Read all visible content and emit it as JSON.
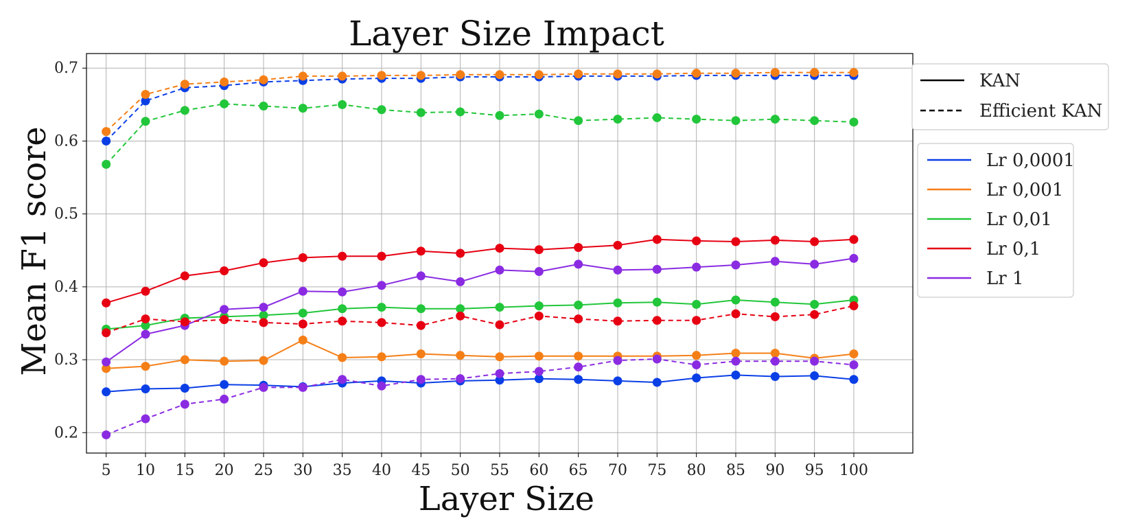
{
  "chart_data": {
    "type": "line",
    "title": "Layer Size Impact",
    "xlabel": "Layer Size",
    "ylabel": "Mean F1 score",
    "x": [
      5,
      10,
      15,
      20,
      25,
      30,
      35,
      40,
      45,
      50,
      55,
      60,
      65,
      70,
      75,
      80,
      85,
      90,
      95,
      100
    ],
    "x_ticks": [
      "5",
      "10",
      "15",
      "20",
      "25",
      "30",
      "35",
      "40",
      "45",
      "50",
      "55",
      "60",
      "65",
      "70",
      "75",
      "80",
      "85",
      "90",
      "95",
      "100"
    ],
    "y_ticks": [
      "0.2",
      "0.3",
      "0.4",
      "0.5",
      "0.6",
      "0.7"
    ],
    "y_tick_values": [
      0.2,
      0.3,
      0.4,
      0.5,
      0.6,
      0.7
    ],
    "xlim": [
      2.5,
      107.5
    ],
    "ylim": [
      0.172,
      0.72
    ],
    "grid": true,
    "style_legend": {
      "placement": "top-right-outside",
      "items": [
        {
          "label": "KAN",
          "style": "solid"
        },
        {
          "label": "Efficient KAN",
          "style": "dashed"
        }
      ]
    },
    "color_legend": {
      "placement": "right-outside",
      "items": [
        {
          "label": "Lr 0,0001",
          "color": "#0b3fe6"
        },
        {
          "label": "Lr 0,001",
          "color": "#f57f17"
        },
        {
          "label": "Lr 0,01",
          "color": "#22c63a"
        },
        {
          "label": "Lr 0,1",
          "color": "#e60012"
        },
        {
          "label": "Lr 1",
          "color": "#8a2be2"
        }
      ]
    },
    "series": [
      {
        "name": "KAN Lr 0,0001",
        "lr": "Lr 0,0001",
        "model": "KAN",
        "color": "#0b3fe6",
        "dashed": false,
        "values": [
          0.256,
          0.26,
          0.261,
          0.266,
          0.265,
          0.263,
          0.268,
          0.271,
          0.268,
          0.271,
          0.272,
          0.274,
          0.273,
          0.271,
          0.269,
          0.275,
          0.279,
          0.277,
          0.278,
          0.273
        ]
      },
      {
        "name": "KAN Lr 0,001",
        "lr": "Lr 0,001",
        "model": "KAN",
        "color": "#f57f17",
        "dashed": false,
        "values": [
          0.288,
          0.291,
          0.3,
          0.298,
          0.299,
          0.327,
          0.303,
          0.304,
          0.308,
          0.306,
          0.304,
          0.305,
          0.305,
          0.305,
          0.305,
          0.306,
          0.309,
          0.309,
          0.302,
          0.308
        ]
      },
      {
        "name": "KAN Lr 0,01",
        "lr": "Lr 0,01",
        "model": "KAN",
        "color": "#22c63a",
        "dashed": false,
        "values": [
          0.342,
          0.347,
          0.357,
          0.359,
          0.361,
          0.364,
          0.37,
          0.372,
          0.37,
          0.37,
          0.372,
          0.374,
          0.375,
          0.378,
          0.379,
          0.376,
          0.382,
          0.379,
          0.376,
          0.382
        ]
      },
      {
        "name": "KAN Lr 0,1",
        "lr": "Lr 0,1",
        "model": "KAN",
        "color": "#e60012",
        "dashed": false,
        "values": [
          0.378,
          0.394,
          0.415,
          0.422,
          0.433,
          0.44,
          0.442,
          0.442,
          0.449,
          0.446,
          0.453,
          0.451,
          0.454,
          0.457,
          0.465,
          0.463,
          0.462,
          0.464,
          0.462,
          0.465
        ]
      },
      {
        "name": "KAN Lr 1",
        "lr": "Lr 1",
        "model": "KAN",
        "color": "#8a2be2",
        "dashed": false,
        "values": [
          0.297,
          0.335,
          0.347,
          0.369,
          0.372,
          0.394,
          0.393,
          0.402,
          0.415,
          0.407,
          0.423,
          0.421,
          0.431,
          0.423,
          0.424,
          0.427,
          0.43,
          0.435,
          0.431,
          0.439
        ]
      },
      {
        "name": "Efficient KAN Lr 0,0001",
        "lr": "Lr 0,0001",
        "model": "Efficient KAN",
        "color": "#0b3fe6",
        "dashed": true,
        "values": [
          0.6,
          0.655,
          0.673,
          0.676,
          0.681,
          0.683,
          0.685,
          0.686,
          0.686,
          0.688,
          0.688,
          0.688,
          0.689,
          0.689,
          0.689,
          0.69,
          0.69,
          0.69,
          0.69,
          0.69
        ]
      },
      {
        "name": "Efficient KAN Lr 0,001",
        "lr": "Lr 0,001",
        "model": "Efficient KAN",
        "color": "#f57f17",
        "dashed": true,
        "values": [
          0.613,
          0.664,
          0.678,
          0.681,
          0.684,
          0.689,
          0.689,
          0.69,
          0.69,
          0.691,
          0.691,
          0.691,
          0.692,
          0.692,
          0.692,
          0.693,
          0.693,
          0.694,
          0.694,
          0.694
        ]
      },
      {
        "name": "Efficient KAN Lr 0,01",
        "lr": "Lr 0,01",
        "model": "Efficient KAN",
        "color": "#22c63a",
        "dashed": true,
        "values": [
          0.568,
          0.627,
          0.642,
          0.651,
          0.648,
          0.645,
          0.65,
          0.643,
          0.639,
          0.64,
          0.635,
          0.637,
          0.628,
          0.63,
          0.632,
          0.63,
          0.628,
          0.63,
          0.628,
          0.626
        ]
      },
      {
        "name": "Efficient KAN Lr 0,1",
        "lr": "Lr 0,1",
        "model": "Efficient KAN",
        "color": "#e60012",
        "dashed": true,
        "values": [
          0.337,
          0.356,
          0.352,
          0.355,
          0.351,
          0.349,
          0.353,
          0.351,
          0.347,
          0.36,
          0.348,
          0.36,
          0.356,
          0.353,
          0.354,
          0.354,
          0.363,
          0.359,
          0.362,
          0.374
        ]
      },
      {
        "name": "Efficient KAN Lr 1",
        "lr": "Lr 1",
        "model": "Efficient KAN",
        "color": "#8a2be2",
        "dashed": true,
        "values": [
          0.197,
          0.219,
          0.239,
          0.246,
          0.262,
          0.262,
          0.273,
          0.264,
          0.273,
          0.274,
          0.281,
          0.284,
          0.29,
          0.299,
          0.301,
          0.293,
          0.298,
          0.298,
          0.298,
          0.293
        ]
      }
    ]
  }
}
